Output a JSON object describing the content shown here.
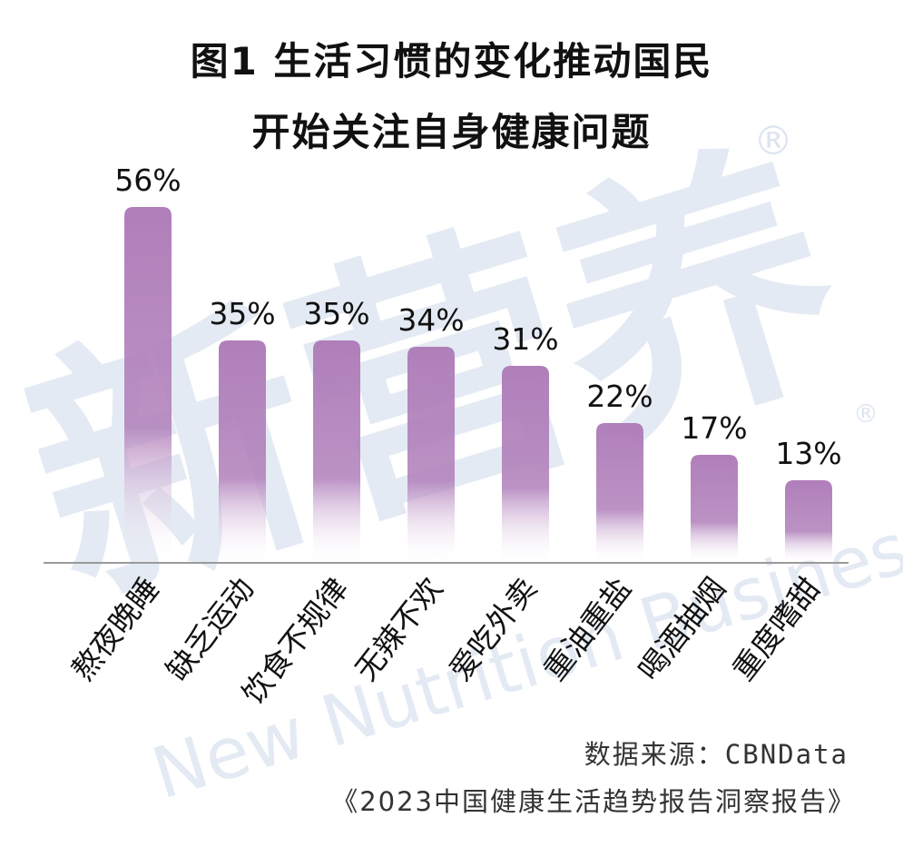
{
  "title_line1": "图1 生活习惯的变化推动国民",
  "title_line2": "开始关注自身健康问题",
  "chart_data": {
    "type": "bar",
    "categories": [
      "熬夜晚睡",
      "缺乏运动",
      "饮食不规律",
      "无辣不欢",
      "爱吃外卖",
      "重油重盐",
      "喝酒抽烟",
      "重度嗜甜"
    ],
    "values": [
      56,
      35,
      35,
      34,
      31,
      22,
      17,
      13
    ],
    "value_labels": [
      "56%",
      "35%",
      "35%",
      "34%",
      "31%",
      "22%",
      "17%",
      "13%"
    ],
    "unit": "%",
    "ylim": [
      0,
      60
    ],
    "grid": false,
    "bar_color": "#b07fba"
  },
  "watermark": {
    "chinese": "新营养",
    "english": "New Nutrition Business",
    "mark": "®",
    "color": "#cfdaea"
  },
  "source_label": "数据来源：CBNData",
  "source_report": "《2023中国健康生活趋势报告洞察报告》"
}
